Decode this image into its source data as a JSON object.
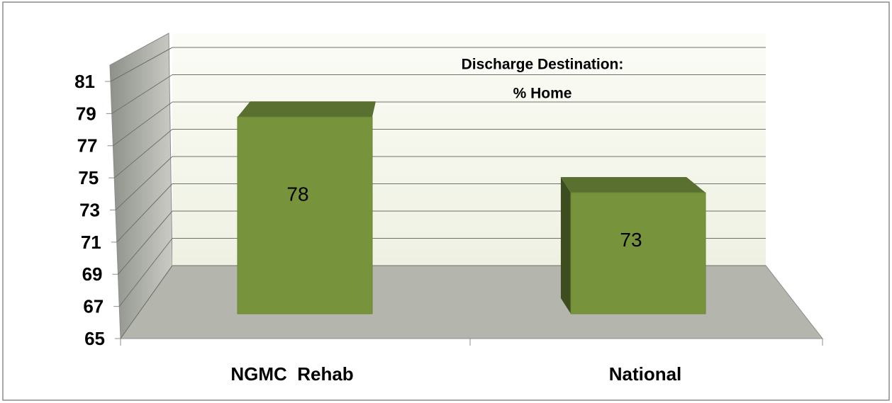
{
  "chart_data": {
    "type": "bar3d",
    "title": "Discharge Destination:",
    "subtitle": "% Home",
    "categories": [
      "NGMC  Rehab",
      "National"
    ],
    "values": [
      78,
      73
    ],
    "color": "#77933c",
    "ylim": [
      65,
      81
    ],
    "yticks": [
      65,
      67,
      69,
      71,
      73,
      75,
      77,
      79,
      81
    ],
    "grid": true
  }
}
